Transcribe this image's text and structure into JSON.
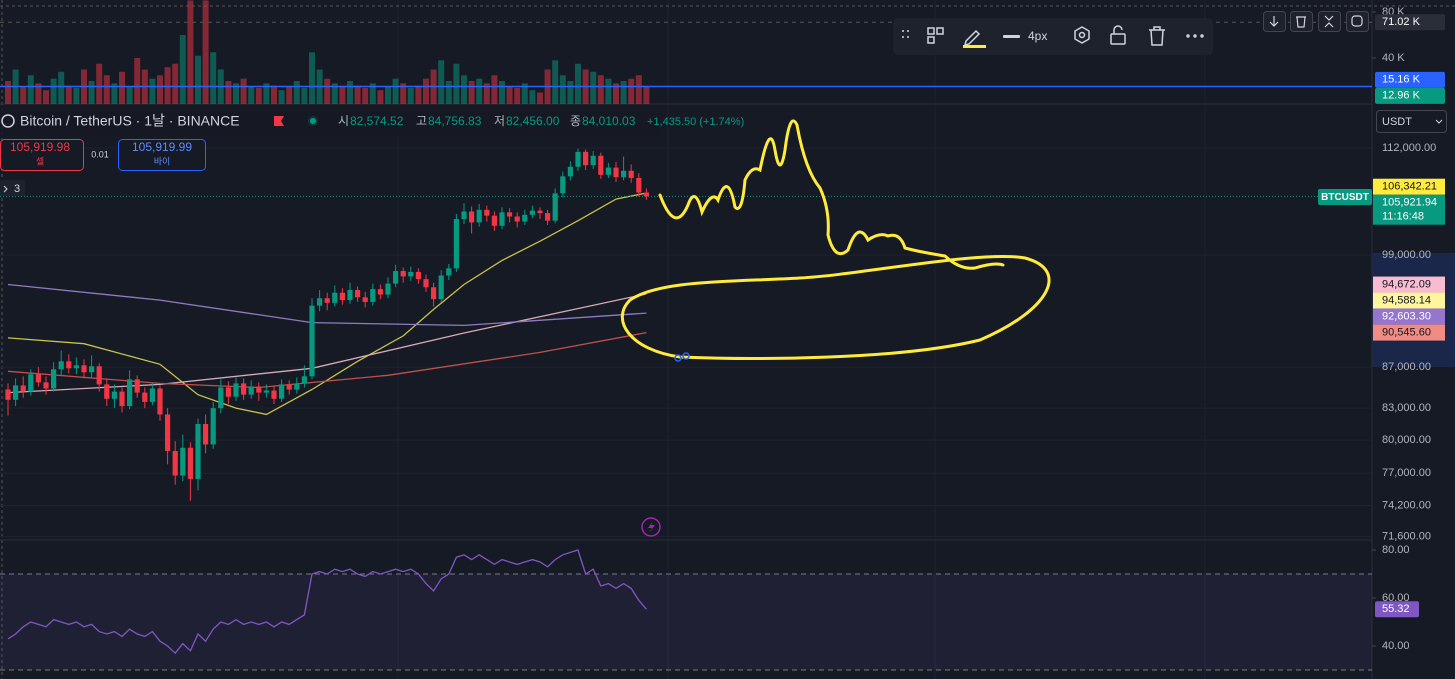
{
  "header": {
    "symbol": "Bitcoin / TetherUS · 1날 · BINANCE",
    "ohlc": [
      {
        "label": "시",
        "value": "82,574.52"
      },
      {
        "label": "고",
        "value": "84,756.83"
      },
      {
        "label": "저",
        "value": "82,456.00"
      },
      {
        "label": "종",
        "value": "84,010.03"
      }
    ],
    "change": "+1,435.50 (+1.74%)"
  },
  "order": {
    "sell_price": "105,919.98",
    "sell_label": "셀",
    "qty": "0.01",
    "buy_price": "105,919.99",
    "buy_label": "바이"
  },
  "indicators_count": 3,
  "toolbar": {
    "width_label": "4px"
  },
  "currency": "USDT",
  "symbol_tag": "BTCUSDT",
  "countdown": "11:16:48",
  "price_pane": {
    "log_scale": true,
    "ylim": [
      71470,
      117820
    ],
    "yticks": [
      {
        "value": 112000,
        "label": "112,000.00"
      },
      {
        "value": 99000,
        "label": "99,000.00"
      },
      {
        "value": 87000,
        "label": "87,000.00"
      },
      {
        "value": 83000,
        "label": "83,000.00"
      },
      {
        "value": 80000,
        "label": "80,000.00"
      },
      {
        "value": 77000,
        "label": "77,000.00"
      },
      {
        "value": 74200,
        "label": "74,200.00"
      },
      {
        "value": 71600,
        "label": "71,600.00"
      }
    ],
    "markers": [
      {
        "value": 106342.21,
        "label": "106,342.21",
        "color": "#ffeb3b",
        "text_color": "#131722"
      },
      {
        "value": 105921.94,
        "label": "105,921.94",
        "color": "#089981",
        "text_color": "#ffffff"
      },
      {
        "value": 94672.09,
        "label": "94,672.09",
        "color": "#f8bbd0",
        "text_color": "#131722"
      },
      {
        "value": 94588.14,
        "label": "94,588.14",
        "color": "#fff59d",
        "text_color": "#131722"
      },
      {
        "value": 92603.3,
        "label": "92,603.30",
        "color": "#9575cd",
        "text_color": "#ffffff"
      },
      {
        "value": 90545.6,
        "label": "90,545.60",
        "color": "#f28b82",
        "text_color": "#131722"
      }
    ],
    "up_color": "#089981",
    "down_color": "#f23645",
    "candles": [
      [
        84800,
        85400,
        82300,
        83800
      ],
      [
        83800,
        85900,
        83200,
        85200
      ],
      [
        85200,
        86100,
        84000,
        84600
      ],
      [
        84600,
        86800,
        84200,
        86300
      ],
      [
        86300,
        87000,
        85100,
        85500
      ],
      [
        85500,
        86100,
        84300,
        84900
      ],
      [
        84900,
        87500,
        84600,
        86800
      ],
      [
        86800,
        88700,
        86200,
        87600
      ],
      [
        87600,
        88300,
        86400,
        86900
      ],
      [
        86900,
        88000,
        86300,
        87200
      ],
      [
        87200,
        87800,
        85900,
        86500
      ],
      [
        86500,
        88200,
        86000,
        87100
      ],
      [
        87100,
        87400,
        84600,
        85300
      ],
      [
        85300,
        85900,
        83200,
        83900
      ],
      [
        83900,
        85300,
        83000,
        84600
      ],
      [
        84600,
        85000,
        82600,
        83200
      ],
      [
        83200,
        86700,
        82900,
        85800
      ],
      [
        85800,
        86200,
        84000,
        84500
      ],
      [
        84500,
        85000,
        83000,
        83600
      ],
      [
        83600,
        85500,
        83300,
        84900
      ],
      [
        84900,
        85200,
        81800,
        82400
      ],
      [
        82400,
        83000,
        77800,
        79000
      ],
      [
        79000,
        79900,
        76000,
        76800
      ],
      [
        76800,
        80500,
        76300,
        79300
      ],
      [
        79300,
        79800,
        74600,
        76500
      ],
      [
        76500,
        82000,
        75500,
        81500
      ],
      [
        81500,
        82400,
        78800,
        79600
      ],
      [
        79600,
        83600,
        79200,
        83000
      ],
      [
        83000,
        85800,
        82500,
        85000
      ],
      [
        85000,
        85600,
        83400,
        84100
      ],
      [
        84100,
        86000,
        83700,
        85400
      ],
      [
        85400,
        85900,
        83800,
        84300
      ],
      [
        84300,
        85700,
        83900,
        85100
      ],
      [
        85100,
        85500,
        83700,
        84500
      ],
      [
        84500,
        85300,
        84000,
        84700
      ],
      [
        84700,
        85100,
        83400,
        83900
      ],
      [
        83900,
        85800,
        83600,
        85300
      ],
      [
        85300,
        85700,
        84300,
        84800
      ],
      [
        84800,
        86000,
        84400,
        85400
      ],
      [
        85400,
        87200,
        85000,
        86100
      ],
      [
        86100,
        94200,
        85800,
        93400
      ],
      [
        93400,
        95100,
        92800,
        94200
      ],
      [
        94200,
        94800,
        92900,
        93700
      ],
      [
        93700,
        95600,
        93300,
        94800
      ],
      [
        94800,
        95300,
        93500,
        94000
      ],
      [
        94000,
        95900,
        93600,
        95100
      ],
      [
        95100,
        95500,
        93800,
        94300
      ],
      [
        94300,
        94900,
        93200,
        93800
      ],
      [
        93800,
        95800,
        93400,
        95200
      ],
      [
        95200,
        95700,
        94100,
        94600
      ],
      [
        94600,
        96500,
        94200,
        95800
      ],
      [
        95800,
        97900,
        95400,
        97200
      ],
      [
        97200,
        97600,
        95900,
        96600
      ],
      [
        96600,
        97700,
        96100,
        97100
      ],
      [
        97100,
        97500,
        95800,
        96300
      ],
      [
        96300,
        96800,
        94900,
        95400
      ],
      [
        95400,
        95900,
        93300,
        94100
      ],
      [
        94100,
        97300,
        93800,
        96700
      ],
      [
        96700,
        98000,
        96200,
        97500
      ],
      [
        97500,
        103800,
        97100,
        103200
      ],
      [
        103200,
        105100,
        102600,
        104100
      ],
      [
        104100,
        104700,
        101500,
        102800
      ],
      [
        102800,
        105000,
        102300,
        104300
      ],
      [
        104300,
        104800,
        102900,
        103600
      ],
      [
        103600,
        104100,
        101800,
        102400
      ],
      [
        102400,
        104600,
        102000,
        104000
      ],
      [
        104000,
        104500,
        102800,
        103500
      ],
      [
        103500,
        104000,
        102200,
        102900
      ],
      [
        102900,
        104300,
        102500,
        103700
      ],
      [
        103700,
        104800,
        103300,
        104200
      ],
      [
        104200,
        104600,
        103200,
        103900
      ],
      [
        103900,
        104300,
        102500,
        103000
      ],
      [
        103000,
        106900,
        102700,
        106300
      ],
      [
        106300,
        109000,
        105800,
        108400
      ],
      [
        108400,
        110300,
        107900,
        109600
      ],
      [
        109600,
        111900,
        109100,
        111500
      ],
      [
        111500,
        111800,
        109200,
        109800
      ],
      [
        109800,
        111600,
        109300,
        111000
      ],
      [
        111000,
        111400,
        108100,
        108600
      ],
      [
        108600,
        110100,
        108200,
        109500
      ],
      [
        109500,
        110200,
        107700,
        108300
      ],
      [
        108300,
        110900,
        107900,
        109100
      ],
      [
        109100,
        109900,
        107600,
        108200
      ],
      [
        108200,
        108800,
        105900,
        106400
      ],
      [
        106400,
        106900,
        105500,
        105922
      ]
    ],
    "moving_averages": [
      {
        "color": "#c9c24a",
        "x": [
          0,
          10,
          20,
          25,
          30,
          34,
          40,
          46,
          52,
          56,
          60,
          65,
          70,
          75,
          80,
          84
        ],
        "values": [
          90000,
          89400,
          87300,
          84300,
          83000,
          82400,
          84800,
          87600,
          90200,
          93000,
          95700,
          98400,
          100600,
          103000,
          105600,
          106342
        ]
      },
      {
        "color": "#d8a9b8",
        "x": [
          0,
          20,
          40,
          60,
          84
        ],
        "values": [
          84500,
          85300,
          86900,
          90500,
          94672
        ]
      },
      {
        "color": "#8e7cc3",
        "x": [
          0,
          20,
          40,
          60,
          84
        ],
        "values": [
          95700,
          94000,
          91600,
          91300,
          92603
        ]
      },
      {
        "color": "#c0504d",
        "x": [
          0,
          20,
          33,
          50,
          70,
          84
        ],
        "values": [
          86600,
          85400,
          85000,
          86200,
          88500,
          90546
        ]
      }
    ]
  },
  "volume_pane": {
    "ylim": [
      0,
      90.4
    ],
    "yticks": [
      {
        "value": 80,
        "label": "80 K"
      },
      {
        "value": 40,
        "label": "40 K"
      }
    ],
    "markers": [
      {
        "value": 71.02,
        "label": "71.02 K",
        "color": "#2a2e39",
        "text_color": "#ffffff"
      },
      {
        "value": 15.16,
        "label": "15.16 K",
        "color": "#2962ff",
        "text_color": "#ffffff"
      },
      {
        "value": 12.96,
        "label": "12.96 K",
        "color": "#089981",
        "text_color": "#ffffff"
      }
    ],
    "values": [
      20,
      30,
      15,
      25,
      18,
      12,
      22,
      28,
      16,
      14,
      30,
      20,
      35,
      25,
      18,
      28,
      15,
      40,
      30,
      22,
      25,
      32,
      35,
      60,
      90,
      42,
      90,
      45,
      30,
      20,
      18,
      22,
      15,
      14,
      18,
      16,
      12,
      15,
      20,
      14,
      45,
      30,
      22,
      18,
      15,
      20,
      16,
      14,
      18,
      12,
      15,
      22,
      18,
      14,
      16,
      22,
      30,
      38,
      20,
      35,
      25,
      20,
      22,
      18,
      25,
      20,
      15,
      14,
      18,
      12,
      10,
      30,
      38,
      25,
      20,
      35,
      30,
      28,
      25,
      22,
      18,
      20,
      22,
      25,
      15
    ]
  },
  "rsi_pane": {
    "ylim": [
      26.25,
      84.17
    ],
    "bands": [
      70,
      30
    ],
    "color": "#7e57c2",
    "yticks": [
      {
        "value": 80,
        "label": "80.00"
      },
      {
        "value": 60,
        "label": "60.00"
      },
      {
        "value": 40,
        "label": "40.00"
      }
    ],
    "values": [
      43,
      45,
      48,
      50,
      49,
      48,
      51,
      50,
      49,
      50,
      48,
      49,
      46,
      45,
      46,
      44,
      47,
      45,
      44,
      46,
      42,
      40,
      37,
      41,
      38,
      45,
      42,
      47,
      50,
      49,
      51,
      49,
      50,
      49,
      50,
      48,
      50,
      49,
      51,
      53,
      70,
      71,
      70,
      72,
      71,
      72,
      70,
      69,
      71,
      70,
      71,
      72,
      71,
      72,
      70,
      66,
      63,
      68,
      70,
      77,
      78,
      76,
      78,
      76,
      74,
      76,
      75,
      74,
      75,
      76,
      75,
      73,
      76,
      78,
      79,
      80,
      70,
      72,
      65,
      66,
      64,
      66,
      64,
      59,
      55.32
    ]
  }
}
